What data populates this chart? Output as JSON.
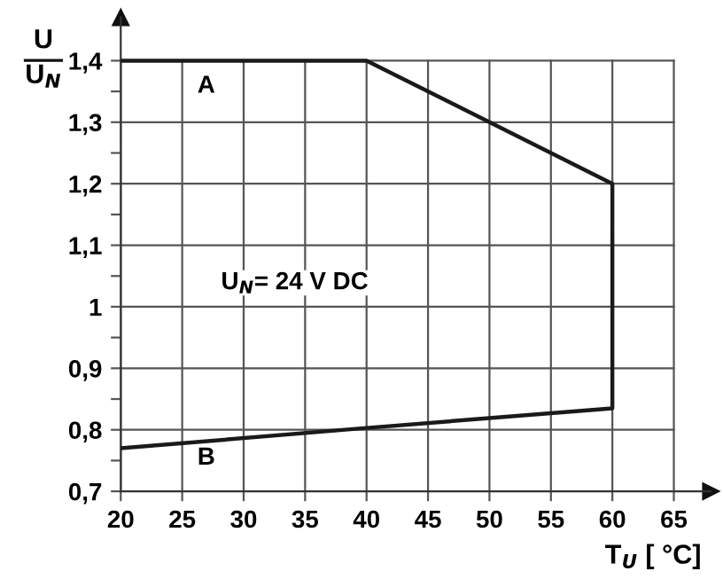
{
  "chart_data": {
    "type": "line",
    "ylabel": "U\nU$_{N}$",
    "xlabel": "T$_{U}$ [ °C]",
    "series": [
      {
        "color": "#1a1a1a",
        "x": [
          20,
          40,
          60,
          60,
          40,
          20
        ],
        "values": [
          0.77,
          0.803,
          0.835,
          1.2,
          1.4,
          1.4
        ]
      }
    ],
    "annotations": [
      "A",
      "B",
      "U$_{N}$= 24 V DC"
    ],
    "xlim": [
      20,
      68
    ],
    "ylim": [
      0.7,
      1.47
    ],
    "xticks": [
      20,
      25,
      30,
      35,
      40,
      45,
      50,
      55,
      60,
      65
    ],
    "yticks": [
      {
        "value": 0.7,
        "label": "0,7"
      },
      {
        "value": 0.75,
        "label": null
      },
      {
        "value": 0.8,
        "label": "0,8"
      },
      {
        "value": 0.85,
        "label": null
      },
      {
        "value": 0.9,
        "label": "0,9"
      },
      {
        "value": 0.95,
        "label": null
      },
      {
        "value": 1,
        "label": "1"
      },
      {
        "value": 1.05,
        "label": null
      },
      {
        "value": 1.1,
        "label": "1,1"
      },
      {
        "value": 1.15,
        "label": null
      },
      {
        "value": 1.2,
        "label": "1,2"
      },
      {
        "value": 1.25,
        "label": null
      },
      {
        "value": 1.3,
        "label": "1,3"
      },
      {
        "value": 1.35,
        "label": null
      },
      {
        "value": 1.4,
        "label": "1,4"
      }
    ],
    "grid": true,
    "marker": "none",
    "line_style": "solid",
    "legend": false
  }
}
